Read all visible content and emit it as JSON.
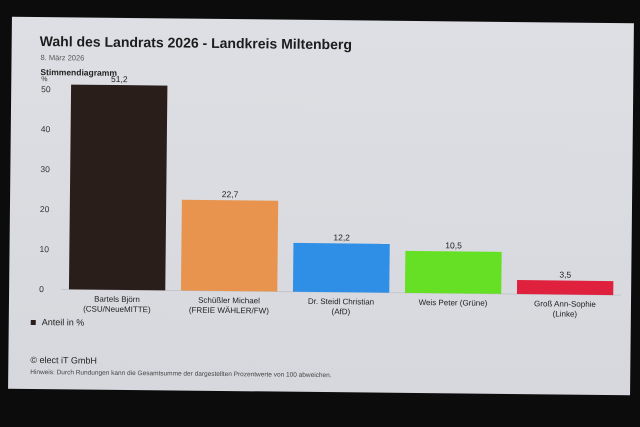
{
  "header": {
    "title": "Wahl des Landrats 2026 - Landkreis Miltenberg",
    "date": "8. März 2026",
    "subtitle": "Stimmendiagramm"
  },
  "legend": {
    "label": "Anteil in %"
  },
  "footer": {
    "copyright": "© elect iT GmbH",
    "note": "Hinweis: Durch Rundungen kann die Gesamtsumme der dargestellten Prozentwerte von 100 abweichen."
  },
  "chart_data": {
    "type": "bar",
    "title": "Wahl des Landrats 2026 - Landkreis Miltenberg",
    "ylabel": "%",
    "ylim": [
      0,
      50
    ],
    "yticks": [
      0,
      10,
      20,
      30,
      40,
      50
    ],
    "categories": [
      [
        "Bartels Björn",
        "(CSU/NeueMITTE)"
      ],
      [
        "Schüßler Michael",
        "(FREIE WÄHLER/FW)"
      ],
      [
        "Dr. Steidl Christian",
        "(AfD)"
      ],
      [
        "Weis Peter (Grüne)"
      ],
      [
        "Groß Ann-Sophie",
        "(Linke)"
      ]
    ],
    "values": [
      51.2,
      22.7,
      12.2,
      10.5,
      3.5
    ],
    "value_labels": [
      "51,2",
      "22,7",
      "12,2",
      "10,5",
      "3,5"
    ],
    "colors": [
      "#2a1e1a",
      "#e8944f",
      "#2f8fe6",
      "#66e024",
      "#e0213e"
    ],
    "series": [
      {
        "name": "Anteil in %",
        "values": [
          51.2,
          22.7,
          12.2,
          10.5,
          3.5
        ]
      }
    ],
    "grid": false,
    "legend_position": "bottom-left"
  }
}
